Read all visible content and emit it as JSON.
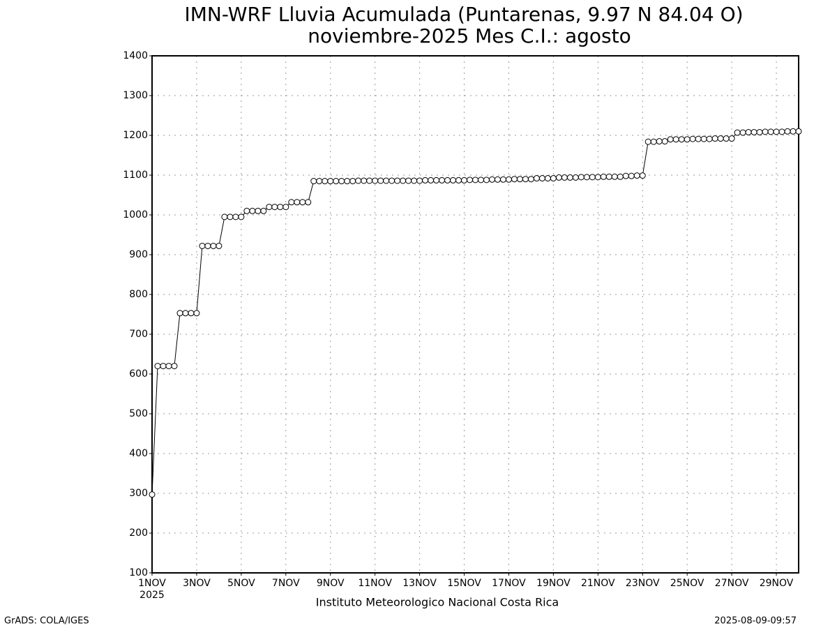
{
  "chart_data": {
    "type": "line",
    "title": "IMN-WRF  Lluvia Acumulada  (Puntarenas, 9.97  N 84.04  O)",
    "subtitle": "noviembre-2025 Mes C.I.: agosto",
    "x_sublabel": "2025",
    "credit": "Instituto Meteorologico Nacional Costa Rica",
    "footer_left": "GrADS: COLA/IGES",
    "footer_right": "2025-08-09-09:57",
    "color": "#000000",
    "grid": true,
    "xlim": [
      0,
      29
    ],
    "ylim": [
      100,
      1400
    ],
    "yticks": [
      100,
      200,
      300,
      400,
      500,
      600,
      700,
      800,
      900,
      1000,
      1100,
      1200,
      1300,
      1400
    ],
    "xticks": [
      {
        "value": 0,
        "label": "1NOV"
      },
      {
        "value": 2,
        "label": "3NOV"
      },
      {
        "value": 4,
        "label": "5NOV"
      },
      {
        "value": 6,
        "label": "7NOV"
      },
      {
        "value": 8,
        "label": "9NOV"
      },
      {
        "value": 10,
        "label": "11NOV"
      },
      {
        "value": 12,
        "label": "13NOV"
      },
      {
        "value": 14,
        "label": "15NOV"
      },
      {
        "value": 16,
        "label": "17NOV"
      },
      {
        "value": 18,
        "label": "19NOV"
      },
      {
        "value": 20,
        "label": "21NOV"
      },
      {
        "value": 22,
        "label": "23NOV"
      },
      {
        "value": 24,
        "label": "25NOV"
      },
      {
        "value": 26,
        "label": "27NOV"
      },
      {
        "value": 28,
        "label": "29NOV"
      }
    ],
    "x": [
      0,
      0.25,
      0.5,
      0.75,
      1,
      1.25,
      1.5,
      1.75,
      2,
      2.25,
      2.5,
      2.75,
      3,
      3.25,
      3.5,
      3.75,
      4,
      4.25,
      4.5,
      4.75,
      5,
      5.25,
      5.5,
      5.75,
      6,
      6.25,
      6.5,
      6.75,
      7,
      7.25,
      7.5,
      7.75,
      8,
      8.25,
      8.5,
      8.75,
      9,
      9.25,
      9.5,
      9.75,
      10,
      10.25,
      10.5,
      10.75,
      11,
      11.25,
      11.5,
      11.75,
      12,
      12.25,
      12.5,
      12.75,
      13,
      13.25,
      13.5,
      13.75,
      14,
      14.25,
      14.5,
      14.75,
      15,
      15.25,
      15.5,
      15.75,
      16,
      16.25,
      16.5,
      16.75,
      17,
      17.25,
      17.5,
      17.75,
      18,
      18.25,
      18.5,
      18.75,
      19,
      19.25,
      19.5,
      19.75,
      20,
      20.25,
      20.5,
      20.75,
      21,
      21.25,
      21.5,
      21.75,
      22,
      22.25,
      22.5,
      22.75,
      23,
      23.25,
      23.5,
      23.75,
      24,
      24.25,
      24.5,
      24.75,
      25,
      25.25,
      25.5,
      25.75,
      26,
      26.25,
      26.5,
      26.75,
      27,
      27.25,
      27.5,
      27.75,
      28,
      28.25,
      28.5,
      28.75,
      29
    ],
    "values": [
      297,
      620,
      620,
      620,
      620,
      753,
      753,
      753,
      753,
      922,
      922,
      922,
      922,
      995,
      995,
      995,
      995,
      1010,
      1010,
      1010,
      1010,
      1020,
      1020,
      1020,
      1020,
      1032,
      1032,
      1032,
      1032,
      1085,
      1085,
      1085,
      1085,
      1085,
      1085,
      1085,
      1085,
      1086,
      1086,
      1086,
      1086,
      1086,
      1086,
      1086,
      1086,
      1086,
      1086,
      1086,
      1086,
      1087,
      1087,
      1087,
      1087,
      1087,
      1087,
      1087,
      1087,
      1088,
      1088,
      1088,
      1088,
      1089,
      1089,
      1089,
      1089,
      1090,
      1090,
      1090,
      1090,
      1092,
      1092,
      1092,
      1092,
      1094,
      1094,
      1094,
      1094,
      1095,
      1095,
      1095,
      1095,
      1096,
      1096,
      1096,
      1096,
      1098,
      1098,
      1099,
      1099,
      1184,
      1184,
      1185,
      1185,
      1190,
      1190,
      1190,
      1190,
      1191,
      1191,
      1191,
      1191,
      1192,
      1192,
      1192,
      1192,
      1207,
      1207,
      1208,
      1208,
      1208,
      1209,
      1209,
      1209,
      1209,
      1210,
      1210,
      1210
    ]
  }
}
